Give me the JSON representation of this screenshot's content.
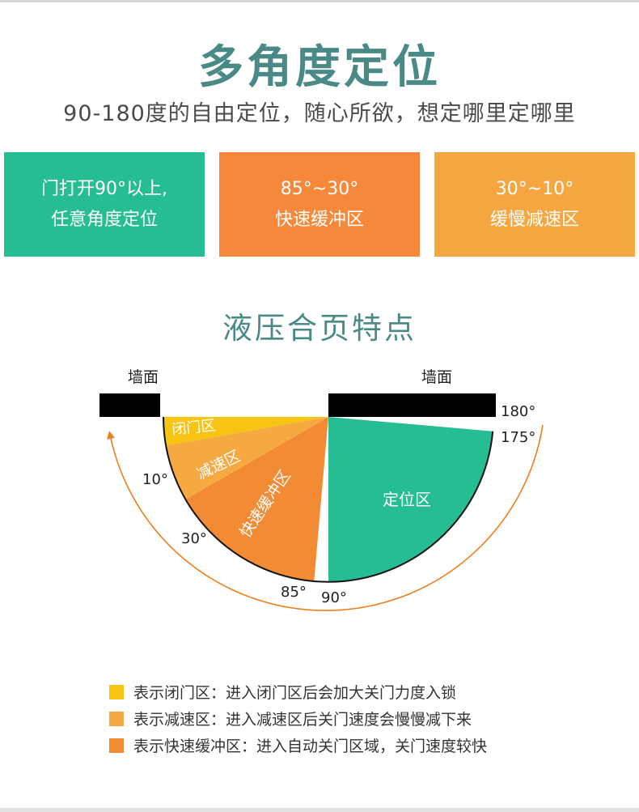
{
  "header": {
    "title": "多角度定位",
    "subtitle": "90-180度的自由定位，随心所欲，想定哪里定哪里"
  },
  "cards": [
    {
      "line1": "门打开90°以上,",
      "line2": "任意角度定位",
      "color": "#26bd93"
    },
    {
      "line1": "85°~30°",
      "line2": "快速缓冲区",
      "color": "#f5883a"
    },
    {
      "line1": "30°~10°",
      "line2": "缓慢减速区",
      "color": "#f6a640"
    }
  ],
  "section": {
    "title": "液压合页特点"
  },
  "diagram": {
    "wall_left": "墙面",
    "wall_right": "墙面",
    "zones": {
      "closing": "闭门区",
      "decel": "减速区",
      "buffer": "快速缓冲区",
      "position": "定位区"
    },
    "angles": {
      "a180": "180°",
      "a175": "175°",
      "a10": "10°",
      "a30": "30°",
      "a85": "85°",
      "a90": "90°"
    },
    "colors": {
      "closing": "#f8c414",
      "decel": "#f5a940",
      "buffer": "#f38b34",
      "position": "#26bd93",
      "arrow": "#ef7d1a",
      "wall": "#000000"
    }
  },
  "legend": [
    {
      "color": "#f8c414",
      "text": "表示闭门区：进入闭门区后会加大关门力度入锁"
    },
    {
      "color": "#f5a940",
      "text": "表示减速区：进入减速区后关门速度会慢慢减下来"
    },
    {
      "color": "#f38b34",
      "text": "表示快速缓冲区：进入自动关门区域，关门速度较快"
    }
  ]
}
